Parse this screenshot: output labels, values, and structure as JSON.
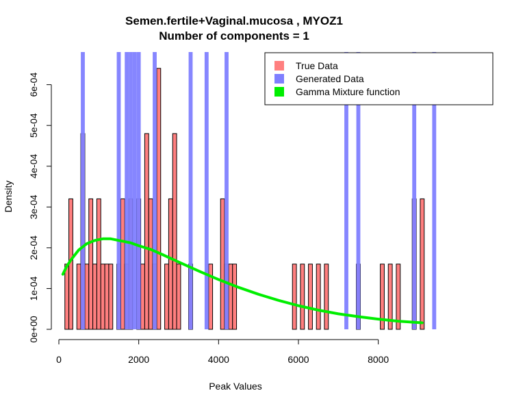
{
  "chart_data": {
    "type": "histogram",
    "title": "Semen.fertile+Vaginal.mucosa , MYOZ1",
    "subtitle": "Number of components =  1",
    "xlabel": "Peak Values",
    "ylabel": "Density",
    "xlim": [
      0,
      9600
    ],
    "ylim": [
      0,
      0.00068
    ],
    "x_ticks": [
      {
        "value": 0,
        "label": "0"
      },
      {
        "value": 2000,
        "label": "2000"
      },
      {
        "value": 4000,
        "label": "4000"
      },
      {
        "value": 6000,
        "label": "6000"
      },
      {
        "value": 8000,
        "label": "8000"
      }
    ],
    "y_ticks": [
      {
        "value": 0,
        "label": "0e+00"
      },
      {
        "value": 0.0001,
        "label": "1e-04"
      },
      {
        "value": 0.0002,
        "label": "2e-04"
      },
      {
        "value": 0.0003,
        "label": "3e-04"
      },
      {
        "value": 0.0004,
        "label": "4e-04"
      },
      {
        "value": 0.0005,
        "label": "5e-04"
      },
      {
        "value": 0.0006,
        "label": "6e-04"
      }
    ],
    "bin_width": 100,
    "series": [
      {
        "name": "True Data",
        "color": "#ff7f7f",
        "bins": [
          {
            "x": 200,
            "density": 0.00016
          },
          {
            "x": 300,
            "density": 0.00032
          },
          {
            "x": 500,
            "density": 0.00016
          },
          {
            "x": 600,
            "density": 0.00048
          },
          {
            "x": 700,
            "density": 0.00016
          },
          {
            "x": 800,
            "density": 0.00032
          },
          {
            "x": 900,
            "density": 0.00016
          },
          {
            "x": 1000,
            "density": 0.00032
          },
          {
            "x": 1100,
            "density": 0.00016
          },
          {
            "x": 1200,
            "density": 0.00016
          },
          {
            "x": 1300,
            "density": 0.00016
          },
          {
            "x": 1500,
            "density": 0.00016
          },
          {
            "x": 1600,
            "density": 0.00032
          },
          {
            "x": 1700,
            "density": 0.00016
          },
          {
            "x": 1800,
            "density": 0.00032
          },
          {
            "x": 2000,
            "density": 0.00032
          },
          {
            "x": 2100,
            "density": 0.00016
          },
          {
            "x": 2200,
            "density": 0.00048
          },
          {
            "x": 2300,
            "density": 0.00032
          },
          {
            "x": 2400,
            "density": 0.00016
          },
          {
            "x": 2500,
            "density": 0.00064
          },
          {
            "x": 2700,
            "density": 0.00016
          },
          {
            "x": 2800,
            "density": 0.00032
          },
          {
            "x": 2900,
            "density": 0.00048
          },
          {
            "x": 3000,
            "density": 0.00016
          },
          {
            "x": 3300,
            "density": 0.00016
          },
          {
            "x": 3800,
            "density": 0.00016
          },
          {
            "x": 4100,
            "density": 0.00032
          },
          {
            "x": 4200,
            "density": 0.00016
          },
          {
            "x": 4300,
            "density": 0.00016
          },
          {
            "x": 4400,
            "density": 0.00016
          },
          {
            "x": 5900,
            "density": 0.00016
          },
          {
            "x": 6100,
            "density": 0.00016
          },
          {
            "x": 6300,
            "density": 0.00016
          },
          {
            "x": 6500,
            "density": 0.00016
          },
          {
            "x": 6700,
            "density": 0.00016
          },
          {
            "x": 7500,
            "density": 0.00016
          },
          {
            "x": 8100,
            "density": 0.00016
          },
          {
            "x": 8300,
            "density": 0.00016
          },
          {
            "x": 8500,
            "density": 0.00016
          },
          {
            "x": 8900,
            "density": 0.00032
          },
          {
            "x": 9100,
            "density": 0.00032
          }
        ]
      },
      {
        "name": "Generated Data",
        "color": "#7f7fff",
        "bins": [
          {
            "x": 600,
            "density": 0.00068
          },
          {
            "x": 1500,
            "density": 0.00068
          },
          {
            "x": 1700,
            "density": 0.00068
          },
          {
            "x": 1800,
            "density": 0.00068
          },
          {
            "x": 1900,
            "density": 0.00068
          },
          {
            "x": 2000,
            "density": 0.00068
          },
          {
            "x": 2400,
            "density": 0.00068
          },
          {
            "x": 3300,
            "density": 0.00068
          },
          {
            "x": 3700,
            "density": 0.00068
          },
          {
            "x": 4200,
            "density": 0.00068
          },
          {
            "x": 7200,
            "density": 0.00068
          },
          {
            "x": 7500,
            "density": 0.00068
          },
          {
            "x": 8900,
            "density": 0.00068
          },
          {
            "x": 9400,
            "density": 0.00068
          }
        ]
      },
      {
        "name": "Gamma Mixture function",
        "color": "#00ee00",
        "type": "line",
        "points": [
          [
            100,
            0.000135
          ],
          [
            200,
            0.000155
          ],
          [
            300,
            0.00017
          ],
          [
            500,
            0.000195
          ],
          [
            700,
            0.00021
          ],
          [
            900,
            0.000218
          ],
          [
            1100,
            0.000222
          ],
          [
            1300,
            0.000222
          ],
          [
            1500,
            0.000218
          ],
          [
            1800,
            0.000212
          ],
          [
            2000,
            0.000205
          ],
          [
            2300,
            0.000196
          ],
          [
            2600,
            0.000183
          ],
          [
            3000,
            0.000165
          ],
          [
            3500,
            0.000143
          ],
          [
            4000,
            0.000122
          ],
          [
            4500,
            0.000103
          ],
          [
            5000,
            8.6e-05
          ],
          [
            5500,
            7.1e-05
          ],
          [
            6000,
            5.8e-05
          ],
          [
            6500,
            4.7e-05
          ],
          [
            7000,
            3.8e-05
          ],
          [
            7500,
            3.1e-05
          ],
          [
            8000,
            2.5e-05
          ],
          [
            8500,
            2e-05
          ],
          [
            9100,
            1.6e-05
          ]
        ]
      }
    ],
    "legend": {
      "position": "top-right",
      "entries": [
        {
          "label": "True Data",
          "color": "#ff7f7f"
        },
        {
          "label": "Generated Data",
          "color": "#7f7fff"
        },
        {
          "label": "Gamma Mixture function",
          "color": "#00ee00"
        }
      ]
    }
  }
}
